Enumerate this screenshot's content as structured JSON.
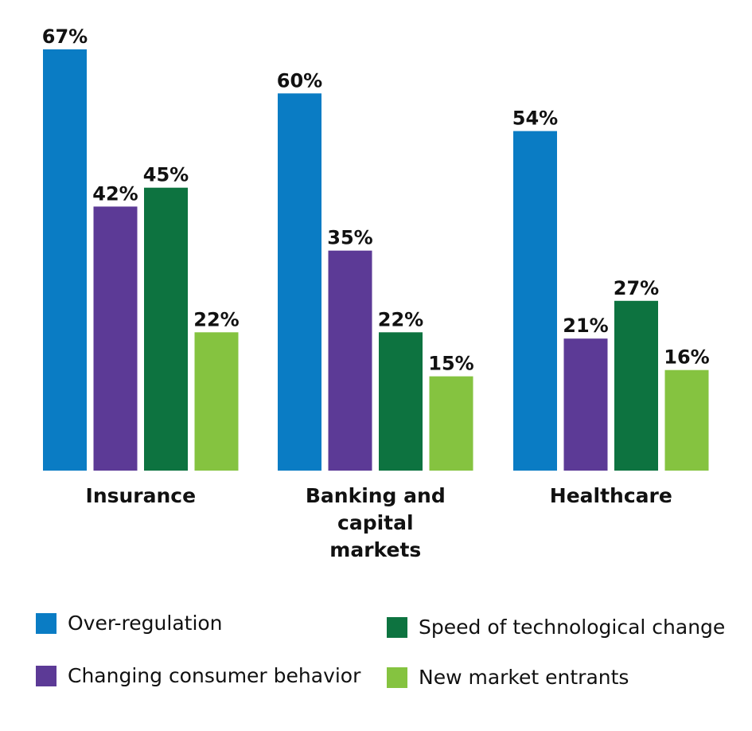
{
  "chart_data": {
    "type": "bar",
    "categories": [
      "Insurance",
      "Banking and capital markets",
      "Healthcare"
    ],
    "category_lines": [
      [
        "Insurance"
      ],
      [
        "Banking and",
        "capital",
        "markets"
      ],
      [
        "Healthcare"
      ]
    ],
    "series": [
      {
        "name": "Over-regulation",
        "color": "#0a7cc4",
        "values": [
          67,
          60,
          54
        ]
      },
      {
        "name": "Changing consumer behavior",
        "color": "#5c3a96",
        "values": [
          42,
          35,
          21
        ]
      },
      {
        "name": "Speed of technological change",
        "color": "#0d7340",
        "values": [
          45,
          22,
          27
        ]
      },
      {
        "name": "New market entrants",
        "color": "#85c340",
        "values": [
          22,
          15,
          16
        ]
      }
    ],
    "value_suffix": "%",
    "ylim": [
      0,
      67
    ],
    "title": "",
    "xlabel": "",
    "ylabel": "",
    "grid": false,
    "legend_position": "bottom"
  }
}
